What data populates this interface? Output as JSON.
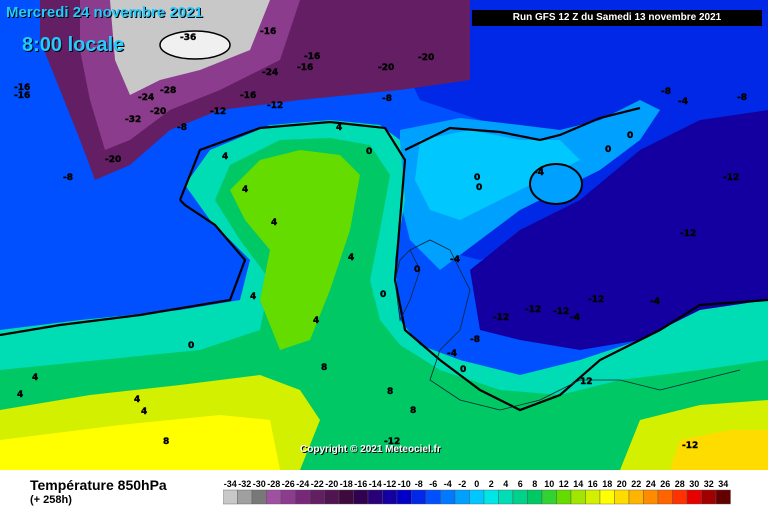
{
  "header": {
    "date": "Mercredi 24 novembre 2021",
    "time": "8:00 locale",
    "run": "Run GFS 12 Z du Samedi 13 novembre 2021"
  },
  "footer": {
    "title": "Température 850hPa",
    "lead": "(+ 258h)",
    "copyright": "Copyright © 2021 Meteociel.fr"
  },
  "legend": {
    "values": [
      "-34",
      "-32",
      "-30",
      "-28",
      "-26",
      "-24",
      "-22",
      "-20",
      "-18",
      "-16",
      "-14",
      "-12",
      "-10",
      "-8",
      "-6",
      "-4",
      "-2",
      "0",
      "2",
      "4",
      "6",
      "8",
      "10",
      "12",
      "14",
      "16",
      "18",
      "20",
      "22",
      "24",
      "26",
      "28",
      "30",
      "32",
      "34"
    ],
    "colors": [
      "#c8c8c8",
      "#a0a0a0",
      "#787878",
      "#a050a0",
      "#8c3c8c",
      "#782878",
      "#641e64",
      "#501450",
      "#3c0a3c",
      "#320050",
      "#280078",
      "#1400a0",
      "#0000c8",
      "#0028e6",
      "#0050ff",
      "#0078ff",
      "#00a0ff",
      "#00c8ff",
      "#00e6e6",
      "#00dcb4",
      "#00d28c",
      "#00c864",
      "#32d232",
      "#64dc00",
      "#a0e600",
      "#d2f000",
      "#ffff00",
      "#ffdc00",
      "#ffb400",
      "#ff8c00",
      "#ff6400",
      "#ff3200",
      "#e60000",
      "#a00000",
      "#640000"
    ]
  },
  "map_labels": [
    {
      "text": "-36"
    },
    {
      "text": "-32"
    },
    {
      "text": "-28"
    },
    {
      "text": "-24"
    },
    {
      "text": "-24"
    },
    {
      "text": "-20"
    },
    {
      "text": "-20"
    },
    {
      "text": "-20"
    },
    {
      "text": "-20"
    },
    {
      "text": "-16"
    },
    {
      "text": "-16"
    },
    {
      "text": "-16"
    },
    {
      "text": "-16"
    },
    {
      "text": "-16"
    },
    {
      "text": "-16"
    },
    {
      "text": "-12"
    },
    {
      "text": "-12"
    },
    {
      "text": "-12"
    },
    {
      "text": "-12"
    },
    {
      "text": "-12"
    },
    {
      "text": "-12"
    },
    {
      "text": "-12"
    },
    {
      "text": "-12"
    },
    {
      "text": "-12"
    },
    {
      "text": "-8"
    },
    {
      "text": "-8"
    },
    {
      "text": "-8"
    },
    {
      "text": "-8"
    },
    {
      "text": "-8"
    },
    {
      "text": "-8"
    },
    {
      "text": "-4"
    },
    {
      "text": "-4"
    },
    {
      "text": "-4"
    },
    {
      "text": "-4"
    },
    {
      "text": "-4"
    },
    {
      "text": "-4"
    },
    {
      "text": "0"
    },
    {
      "text": "0"
    },
    {
      "text": "0"
    },
    {
      "text": "0"
    },
    {
      "text": "0"
    },
    {
      "text": "0"
    },
    {
      "text": "0"
    },
    {
      "text": "0"
    },
    {
      "text": "0"
    },
    {
      "text": "4"
    },
    {
      "text": "4"
    },
    {
      "text": "4"
    },
    {
      "text": "4"
    },
    {
      "text": "4"
    },
    {
      "text": "4"
    },
    {
      "text": "4"
    },
    {
      "text": "4"
    },
    {
      "text": "4"
    },
    {
      "text": "4"
    },
    {
      "text": "4"
    },
    {
      "text": "8"
    },
    {
      "text": "8"
    },
    {
      "text": "8"
    },
    {
      "text": "8"
    },
    {
      "text": "12"
    },
    {
      "text": "-12"
    }
  ]
}
